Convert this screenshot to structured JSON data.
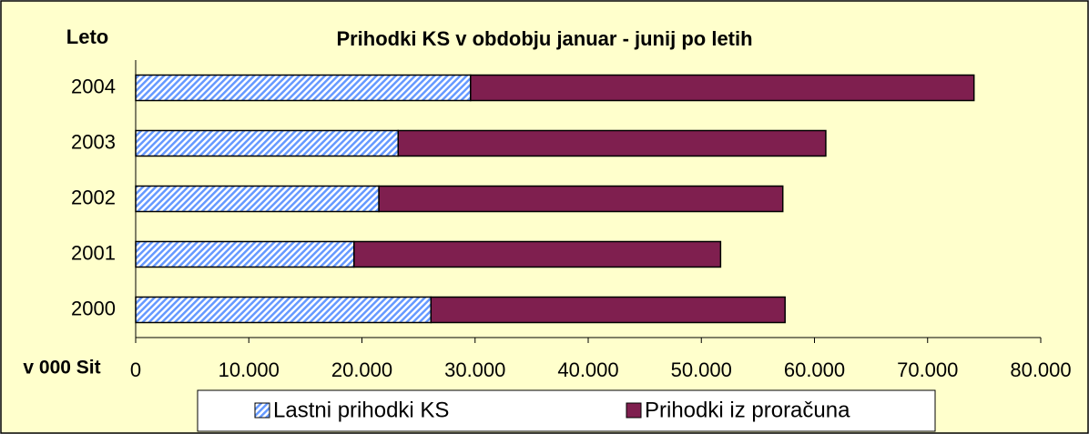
{
  "chart_data": {
    "type": "stacked-bar-horizontal",
    "title": "Prihodki KS v obdobju januar - junij po letih",
    "y_label": "Leto",
    "x_label": "v 000 Sit",
    "categories": [
      "2004",
      "2003",
      "2002",
      "2001",
      "2000"
    ],
    "series": [
      {
        "name": "Lastni prihodki KS",
        "color": "#6699ff",
        "values": [
          29600,
          23200,
          21500,
          19300,
          26100
        ]
      },
      {
        "name": "Prihodki iz proračuna",
        "color": "#7f1f4f",
        "values": [
          44500,
          37800,
          35700,
          32400,
          31300
        ]
      }
    ],
    "xlim": [
      0,
      80000
    ],
    "xticks": [
      0,
      {
        "value": 10000,
        "label": "10.000"
      },
      {
        "value": 20000,
        "label": "20.000"
      },
      {
        "value": 30000,
        "label": "30.000"
      },
      {
        "value": 40000,
        "label": "40.000"
      },
      {
        "value": 50000,
        "label": "50.000"
      },
      {
        "value": 60000,
        "label": "60.000"
      },
      {
        "value": 70000,
        "label": "70.000"
      },
      {
        "value": 80000,
        "label": "80.000"
      }
    ],
    "legend": "bottom"
  }
}
